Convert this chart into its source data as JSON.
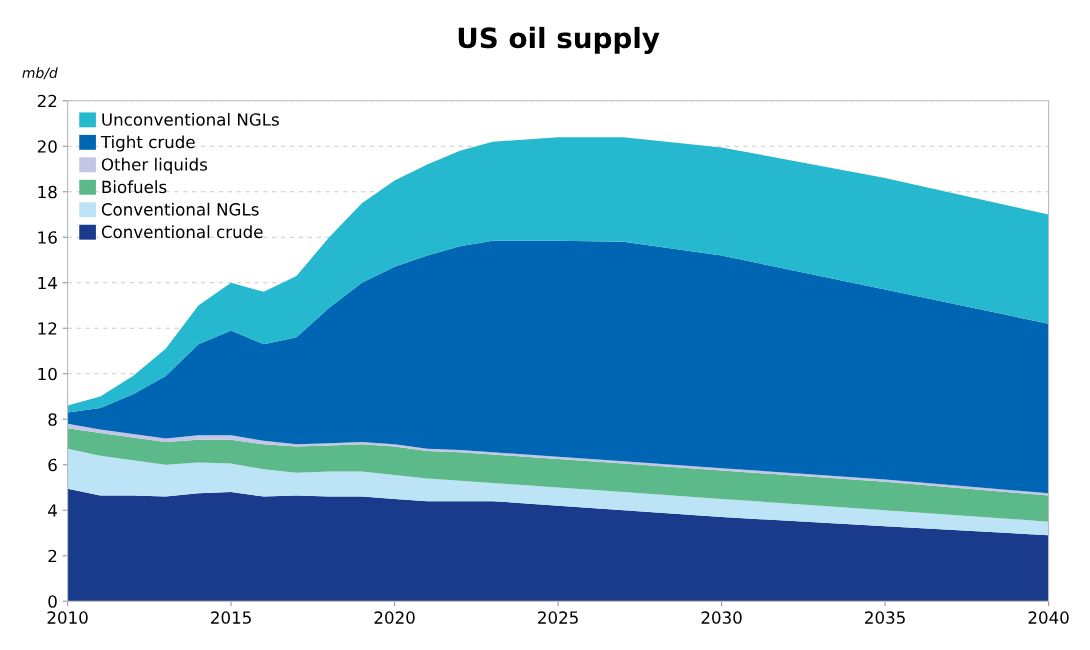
{
  "chart_data": {
    "type": "area",
    "stacked": true,
    "title": "US oil supply",
    "ylabel": "mb/d",
    "x": [
      2010,
      2011,
      2012,
      2013,
      2014,
      2015,
      2016,
      2017,
      2018,
      2019,
      2020,
      2021,
      2022,
      2023,
      2025,
      2027,
      2030,
      2035,
      2040
    ],
    "series": [
      {
        "name": "Conventional crude",
        "color": "#1a3a8c",
        "values": [
          4.95,
          4.65,
          4.65,
          4.6,
          4.75,
          4.8,
          4.6,
          4.65,
          4.6,
          4.6,
          4.5,
          4.4,
          4.4,
          4.4,
          4.2,
          4.0,
          3.7,
          3.3,
          2.9
        ]
      },
      {
        "name": "Conventional NGLs",
        "color": "#bde3f7",
        "values": [
          1.75,
          1.75,
          1.55,
          1.4,
          1.35,
          1.25,
          1.2,
          1.0,
          1.1,
          1.1,
          1.05,
          1.0,
          0.9,
          0.8,
          0.8,
          0.8,
          0.8,
          0.7,
          0.6
        ]
      },
      {
        "name": "Biofuels",
        "color": "#5bb98a",
        "values": [
          0.9,
          1.0,
          1.0,
          1.0,
          1.0,
          1.05,
          1.1,
          1.15,
          1.15,
          1.2,
          1.25,
          1.2,
          1.25,
          1.25,
          1.25,
          1.25,
          1.25,
          1.25,
          1.15
        ]
      },
      {
        "name": "Other liquids",
        "color": "#c5c5e5",
        "values": [
          0.2,
          0.15,
          0.15,
          0.15,
          0.2,
          0.2,
          0.15,
          0.1,
          0.1,
          0.1,
          0.1,
          0.1,
          0.1,
          0.1,
          0.1,
          0.1,
          0.1,
          0.1,
          0.1
        ]
      },
      {
        "name": "Tight crude",
        "color": "#0066b3",
        "values": [
          0.5,
          0.95,
          1.75,
          2.75,
          4.0,
          4.6,
          4.25,
          4.7,
          5.95,
          7.0,
          7.8,
          8.5,
          8.95,
          9.3,
          9.5,
          9.65,
          9.35,
          8.35,
          7.45
        ]
      },
      {
        "name": "Unconventional NGLs",
        "color": "#25b8ce",
        "values": [
          0.3,
          0.5,
          0.8,
          1.2,
          1.7,
          2.1,
          2.3,
          2.7,
          3.1,
          3.5,
          3.8,
          4.0,
          4.2,
          4.35,
          4.55,
          4.6,
          4.75,
          4.9,
          4.8
        ]
      }
    ],
    "xlim": [
      2010,
      2040
    ],
    "xticks": [
      2010,
      2015,
      2020,
      2025,
      2030,
      2035,
      2040
    ],
    "ylim": [
      0,
      22
    ],
    "yticks": [
      0,
      2,
      4,
      6,
      8,
      10,
      12,
      14,
      16,
      18,
      20,
      22
    ],
    "grid": "y",
    "legend": "top left"
  }
}
